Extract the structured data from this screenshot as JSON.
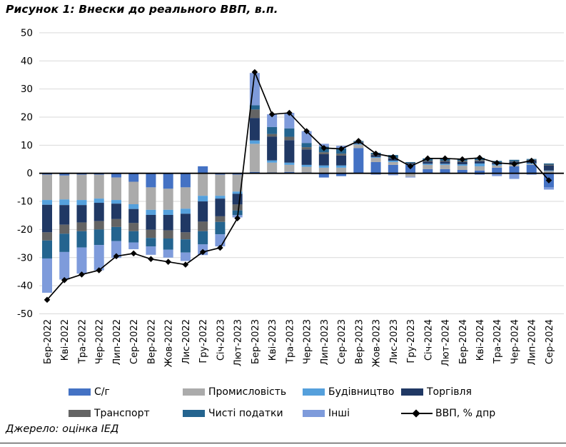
{
  "title": "Рисунок 1: Внески до реального ВВП, в.п.",
  "source": "Джерело: оцінка ІЕД",
  "colors": {
    "agriculture": "#4472C4",
    "industry": "#ABABAB",
    "construction": "#55A0DC",
    "trade": "#203864",
    "transport": "#646464",
    "net_taxes": "#24648F",
    "other": "#7E9BDB",
    "gdp_line": "#000000",
    "gridline": "#D9D9D9",
    "axis": "#000000"
  },
  "legend": {
    "items": [
      {
        "label": "С/г",
        "color": "#4472C4",
        "type": "box"
      },
      {
        "label": "Промисловість",
        "color": "#ABABAB",
        "type": "box"
      },
      {
        "label": "Будівництво",
        "color": "#55A0DC",
        "type": "box"
      },
      {
        "label": "Торгівля",
        "color": "#203864",
        "type": "box"
      },
      {
        "label": "Транспорт",
        "color": "#646464",
        "type": "box"
      },
      {
        "label": "Чисті податки",
        "color": "#24648F",
        "type": "box"
      },
      {
        "label": "Інші",
        "color": "#7E9BDB",
        "type": "box"
      },
      {
        "label": "ВВП, % дпр",
        "color": "#000000",
        "type": "line-diamond"
      }
    ]
  },
  "chart_data": {
    "type": "bar",
    "subtype": "stacked-bar-with-line",
    "title": "Рисунок 1: Внески до реального ВВП, в.п.",
    "xlabel": "",
    "ylabel": "",
    "ylim": [
      -50,
      50
    ],
    "ytick_step": 10,
    "yticks": [
      50,
      40,
      30,
      20,
      10,
      0,
      -10,
      -20,
      -30,
      -40,
      -50
    ],
    "grid": true,
    "legend_position": "bottom",
    "categories": [
      "Бер-2022",
      "Кві-2022",
      "Тра-2022",
      "Чер-2022",
      "Лип-2022",
      "Сер-2022",
      "Вер-2022",
      "Жов-2022",
      "Лис-2022",
      "Гру-2022",
      "Січ-2023",
      "Лют-2023",
      "Бер-2023",
      "Кві-2023",
      "Тра-2023",
      "Чер-2023",
      "Лип-2023",
      "Сер-2023",
      "Вер-2023",
      "Жов-2023",
      "Лис-2023",
      "Гру-2023",
      "Січ-2024",
      "Лют-2024",
      "Бер-2024",
      "Кві-2024",
      "Тра-2024",
      "Чер-2024",
      "Лип-2024",
      "Сер-2024"
    ],
    "series": [
      {
        "name": "С/г",
        "color": "#4472C4",
        "values": [
          -0.5,
          -0.8,
          -0.5,
          -0.5,
          -1.5,
          -3.0,
          -5.0,
          -5.5,
          -5.0,
          2.5,
          -0.5,
          -0.5,
          0.5,
          0.3,
          0.5,
          0.3,
          -1.5,
          -1.0,
          9.0,
          4.0,
          3.0,
          3.0,
          1.5,
          1.5,
          1.2,
          1.0,
          2.0,
          2.5,
          3.0,
          -5.0
        ]
      },
      {
        "name": "Промисловість",
        "color": "#ABABAB",
        "values": [
          -9.0,
          -8.5,
          -9.0,
          -8.5,
          -8.0,
          -8.0,
          -8.0,
          -7.5,
          -7.6,
          -8.0,
          -7.5,
          -6.0,
          10.0,
          3.5,
          2.5,
          2.0,
          2.0,
          2.0,
          1.2,
          1.5,
          1.0,
          -1.2,
          1.5,
          1.5,
          1.5,
          1.5,
          0.8,
          0.6,
          0.3,
          0.8
        ]
      },
      {
        "name": "Будівництво",
        "color": "#55A0DC",
        "values": [
          -1.7,
          -2.0,
          -1.8,
          -1.5,
          -1.3,
          -1.7,
          -1.8,
          -1.8,
          -1.8,
          -2.0,
          -1.0,
          -0.8,
          1.2,
          0.8,
          0.8,
          0.7,
          0.8,
          0.8,
          0.3,
          0.3,
          0.5,
          0.2,
          0.4,
          0.4,
          0.5,
          1.0,
          0.4,
          0.4,
          0.3,
          0.2
        ]
      },
      {
        "name": "Торгівля",
        "color": "#203864",
        "values": [
          -9.8,
          -7.0,
          -6.2,
          -6.5,
          -5.5,
          -5.0,
          -5.3,
          -5.5,
          -6.6,
          -7.2,
          -6.3,
          -3.8,
          8.0,
          8.5,
          8.0,
          5.5,
          4.0,
          3.5,
          0.5,
          0.7,
          0.8,
          0.4,
          0.8,
          0.8,
          0.8,
          0.8,
          0.5,
          0.6,
          1.0,
          1.8
        ]
      },
      {
        "name": "Транспорт",
        "color": "#646464",
        "values": [
          -2.9,
          -3.2,
          -3.1,
          -3.0,
          -2.8,
          -2.9,
          -2.9,
          -2.9,
          -2.5,
          -3.4,
          -2.0,
          -2.1,
          3.0,
          0.9,
          1.2,
          0.8,
          0.7,
          0.7,
          0.2,
          0.3,
          0.2,
          0.1,
          0.3,
          0.3,
          0.4,
          0.4,
          0.2,
          0.2,
          0.2,
          0.3
        ]
      },
      {
        "name": "Чисті податки",
        "color": "#24648F",
        "values": [
          -6.4,
          -6.5,
          -5.8,
          -5.5,
          -5.0,
          -4.0,
          -3.0,
          -4.0,
          -4.7,
          -4.7,
          -4.4,
          -1.7,
          1.5,
          2.5,
          3.0,
          1.5,
          2.0,
          1.8,
          0.3,
          0.5,
          1.0,
          0.3,
          0.8,
          0.8,
          0.6,
          0.8,
          0.5,
          0.5,
          0.3,
          0.4
        ]
      },
      {
        "name": "Інші",
        "color": "#7E9BDB",
        "values": [
          -12.2,
          -9.8,
          -9.3,
          -9.0,
          -6.0,
          -2.4,
          -3.0,
          -2.8,
          -3.0,
          -3.8,
          -4.3,
          -0.8,
          11.5,
          4.5,
          5.5,
          4.2,
          1.0,
          1.0,
          0.0,
          -0.5,
          -0.7,
          -0.3,
          0.0,
          0.0,
          0.0,
          -0.5,
          -1.0,
          -2.0,
          -0.5,
          -0.8
        ]
      }
    ],
    "line": {
      "name": "ВВП, % дпр",
      "color": "#000000",
      "marker": "diamond",
      "values": [
        -45.0,
        -38.0,
        -36.0,
        -34.5,
        -29.5,
        -28.5,
        -30.5,
        -31.5,
        -32.5,
        -28.0,
        -26.5,
        -16.0,
        36.0,
        21.0,
        21.5,
        15.0,
        9.0,
        8.7,
        11.5,
        7.0,
        5.8,
        2.5,
        5.3,
        5.3,
        5.0,
        5.5,
        3.7,
        3.3,
        4.5,
        -2.5
      ]
    }
  }
}
